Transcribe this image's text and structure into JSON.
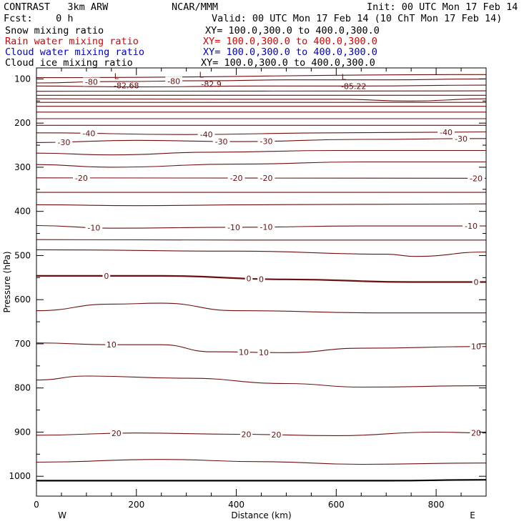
{
  "header": {
    "model": "CONTRAST   3km ARW",
    "center": "NCAR/MMM",
    "init": "Init: 00 UTC Mon 17 Feb 14",
    "fcst": "Fcst:    0 h",
    "valid": "Valid: 00 UTC Mon 17 Feb 14 (10 ChT Mon 17 Feb 14)",
    "fields": [
      {
        "name": "Snow mixing ratio",
        "xy": "XY= 100.0,300.0 to 400.0,300.0",
        "color": "#000000"
      },
      {
        "name": "Rain water mixing ratio",
        "xy": "XY= 100.0,300.0 to 400.0,300.0",
        "color": "#e00000"
      },
      {
        "name": "Cloud water mixing ratio",
        "xy": "XY= 100.0,300.0 to 400.0,300.0",
        "color": "#0000d0"
      },
      {
        "name": "Cloud ice mixing ratio",
        "xy": "XY= 100.0,300.0 to 400.0,300.0",
        "color": "#000000"
      }
    ]
  },
  "chart_data": {
    "type": "line",
    "xlabel": "Distance (km)",
    "ylabel": "Pressure (hPa)",
    "xlim": [
      0,
      900
    ],
    "ylim": [
      1045,
      75
    ],
    "x_ticks": [
      0,
      200,
      400,
      600,
      800
    ],
    "y_ticks": [
      100,
      200,
      300,
      400,
      500,
      600,
      700,
      800,
      900,
      1000
    ],
    "left_end_label": "W",
    "right_end_label": "E",
    "contour_color": "#6b0f0f",
    "highs_lows": [
      {
        "symbol": "L",
        "value": "-82.68",
        "x": 160,
        "p": 94
      },
      {
        "symbol": "L",
        "value": "-82.9",
        "x": 330,
        "p": 90
      },
      {
        "symbol": "L",
        "value": "-85.22",
        "x": 615,
        "p": 95
      }
    ],
    "labeled_contours": [
      {
        "value": -80,
        "labels": [
          {
            "x": 110,
            "text": "-80"
          },
          {
            "x": 275,
            "text": "-80"
          }
        ]
      },
      {
        "value": -40,
        "labels": [
          {
            "x": 105,
            "text": "-40"
          },
          {
            "x": 340,
            "text": "-40"
          },
          {
            "x": 820,
            "text": "-40"
          }
        ]
      },
      {
        "value": -30,
        "labels": [
          {
            "x": 55,
            "text": "-30"
          },
          {
            "x": 370,
            "text": "-30"
          },
          {
            "x": 460,
            "text": "-30"
          },
          {
            "x": 850,
            "text": "-30"
          }
        ]
      },
      {
        "value": -20,
        "labels": [
          {
            "x": 90,
            "text": "-20"
          },
          {
            "x": 400,
            "text": "-20"
          },
          {
            "x": 460,
            "text": "-20"
          },
          {
            "x": 880,
            "text": "-20"
          }
        ]
      },
      {
        "value": -10,
        "labels": [
          {
            "x": 115,
            "text": "-10"
          },
          {
            "x": 395,
            "text": "-10"
          },
          {
            "x": 460,
            "text": "-10"
          },
          {
            "x": 870,
            "text": "-10"
          }
        ]
      },
      {
        "value": 0,
        "labels": [
          {
            "x": 140,
            "text": "0"
          },
          {
            "x": 425,
            "text": "0"
          },
          {
            "x": 450,
            "text": "0"
          },
          {
            "x": 880,
            "text": "0"
          }
        ]
      },
      {
        "value": 10,
        "labels": [
          {
            "x": 150,
            "text": "10"
          },
          {
            "x": 415,
            "text": "10"
          },
          {
            "x": 455,
            "text": "10"
          },
          {
            "x": 880,
            "text": "10"
          }
        ]
      },
      {
        "value": 20,
        "labels": [
          {
            "x": 160,
            "text": "20"
          },
          {
            "x": 420,
            "text": "20"
          },
          {
            "x": 480,
            "text": "20"
          },
          {
            "x": 880,
            "text": "20"
          }
        ]
      }
    ],
    "contours": [
      {
        "pts": [
          [
            0,
            97
          ],
          [
            900,
            90
          ]
        ]
      },
      {
        "pts": [
          [
            0,
            109
          ],
          [
            150,
            106
          ],
          [
            350,
            104
          ],
          [
            500,
            102
          ],
          [
            700,
            102
          ],
          [
            900,
            100
          ]
        ]
      },
      {
        "pts": [
          [
            0,
            116
          ],
          [
            200,
            118
          ],
          [
            450,
            116
          ],
          [
            650,
            116
          ],
          [
            900,
            114
          ]
        ]
      },
      {
        "pts": [
          [
            0,
            128
          ],
          [
            900,
            127
          ]
        ]
      },
      {
        "pts": [
          [
            0,
            137
          ],
          [
            450,
            137
          ],
          [
            900,
            137
          ]
        ]
      },
      {
        "pts": [
          [
            0,
            145
          ],
          [
            400,
            146
          ],
          [
            600,
            146
          ],
          [
            750,
            150
          ],
          [
            900,
            145
          ]
        ]
      },
      {
        "pts": [
          [
            0,
            153
          ],
          [
            900,
            153
          ]
        ]
      },
      {
        "pts": [
          [
            0,
            162
          ],
          [
            900,
            162
          ]
        ]
      },
      {
        "pts": [
          [
            0,
            175
          ],
          [
            900,
            175
          ]
        ]
      },
      {
        "pts": [
          [
            0,
            190
          ],
          [
            900,
            190
          ]
        ]
      },
      {
        "pts": [
          [
            0,
            205
          ],
          [
            900,
            205
          ]
        ]
      },
      {
        "pts": [
          [
            0,
            222
          ],
          [
            300,
            226
          ],
          [
            600,
            222
          ],
          [
            900,
            220
          ]
        ]
      },
      {
        "pts": [
          [
            0,
            244
          ],
          [
            200,
            239
          ],
          [
            400,
            242
          ],
          [
            650,
            237
          ],
          [
            900,
            235
          ]
        ]
      },
      {
        "pts": [
          [
            0,
            268
          ],
          [
            150,
            272
          ],
          [
            350,
            266
          ],
          [
            600,
            262
          ],
          [
            900,
            262
          ]
        ]
      },
      {
        "pts": [
          [
            0,
            294
          ],
          [
            150,
            300
          ],
          [
            400,
            293
          ],
          [
            650,
            288
          ],
          [
            900,
            288
          ]
        ]
      },
      {
        "pts": [
          [
            0,
            324
          ],
          [
            900,
            325
          ]
        ]
      },
      {
        "pts": [
          [
            0,
            357
          ],
          [
            900,
            357
          ]
        ]
      },
      {
        "pts": [
          [
            0,
            385
          ],
          [
            200,
            387
          ],
          [
            450,
            385
          ],
          [
            900,
            383
          ]
        ]
      },
      {
        "pts": [
          [
            0,
            432
          ],
          [
            150,
            438
          ],
          [
            400,
            436
          ],
          [
            650,
            433
          ],
          [
            900,
            433
          ]
        ]
      },
      {
        "pts": [
          [
            0,
            464
          ],
          [
            400,
            465
          ],
          [
            900,
            465
          ]
        ]
      },
      {
        "pts": [
          [
            0,
            487
          ],
          [
            400,
            490
          ],
          [
            700,
            497
          ],
          [
            760,
            502
          ],
          [
            900,
            492
          ]
        ]
      },
      {
        "pts": [
          [
            0,
            546
          ],
          [
            250,
            546
          ],
          [
            500,
            554
          ],
          [
            750,
            560
          ],
          [
            900,
            560
          ]
        ]
      },
      {
        "pts": [
          [
            0,
            625
          ],
          [
            150,
            610
          ],
          [
            250,
            608
          ],
          [
            400,
            625
          ],
          [
            700,
            630
          ],
          [
            900,
            630
          ]
        ]
      },
      {
        "pts": [
          [
            0,
            698
          ],
          [
            150,
            702
          ],
          [
            250,
            702
          ],
          [
            350,
            718
          ],
          [
            500,
            720
          ],
          [
            650,
            710
          ],
          [
            900,
            706
          ]
        ]
      },
      {
        "pts": [
          [
            0,
            782
          ],
          [
            100,
            773
          ],
          [
            300,
            778
          ],
          [
            500,
            790
          ],
          [
            650,
            798
          ],
          [
            900,
            795
          ]
        ]
      },
      {
        "pts": [
          [
            0,
            907
          ],
          [
            200,
            902
          ],
          [
            400,
            905
          ],
          [
            600,
            908
          ],
          [
            800,
            900
          ],
          [
            900,
            902
          ]
        ]
      },
      {
        "pts": [
          [
            0,
            968
          ],
          [
            250,
            962
          ],
          [
            450,
            967
          ],
          [
            650,
            973
          ],
          [
            900,
            970
          ]
        ]
      }
    ],
    "ground": {
      "pts": [
        [
          0,
          1010
        ],
        [
          700,
          1010
        ],
        [
          900,
          1008
        ]
      ]
    }
  }
}
